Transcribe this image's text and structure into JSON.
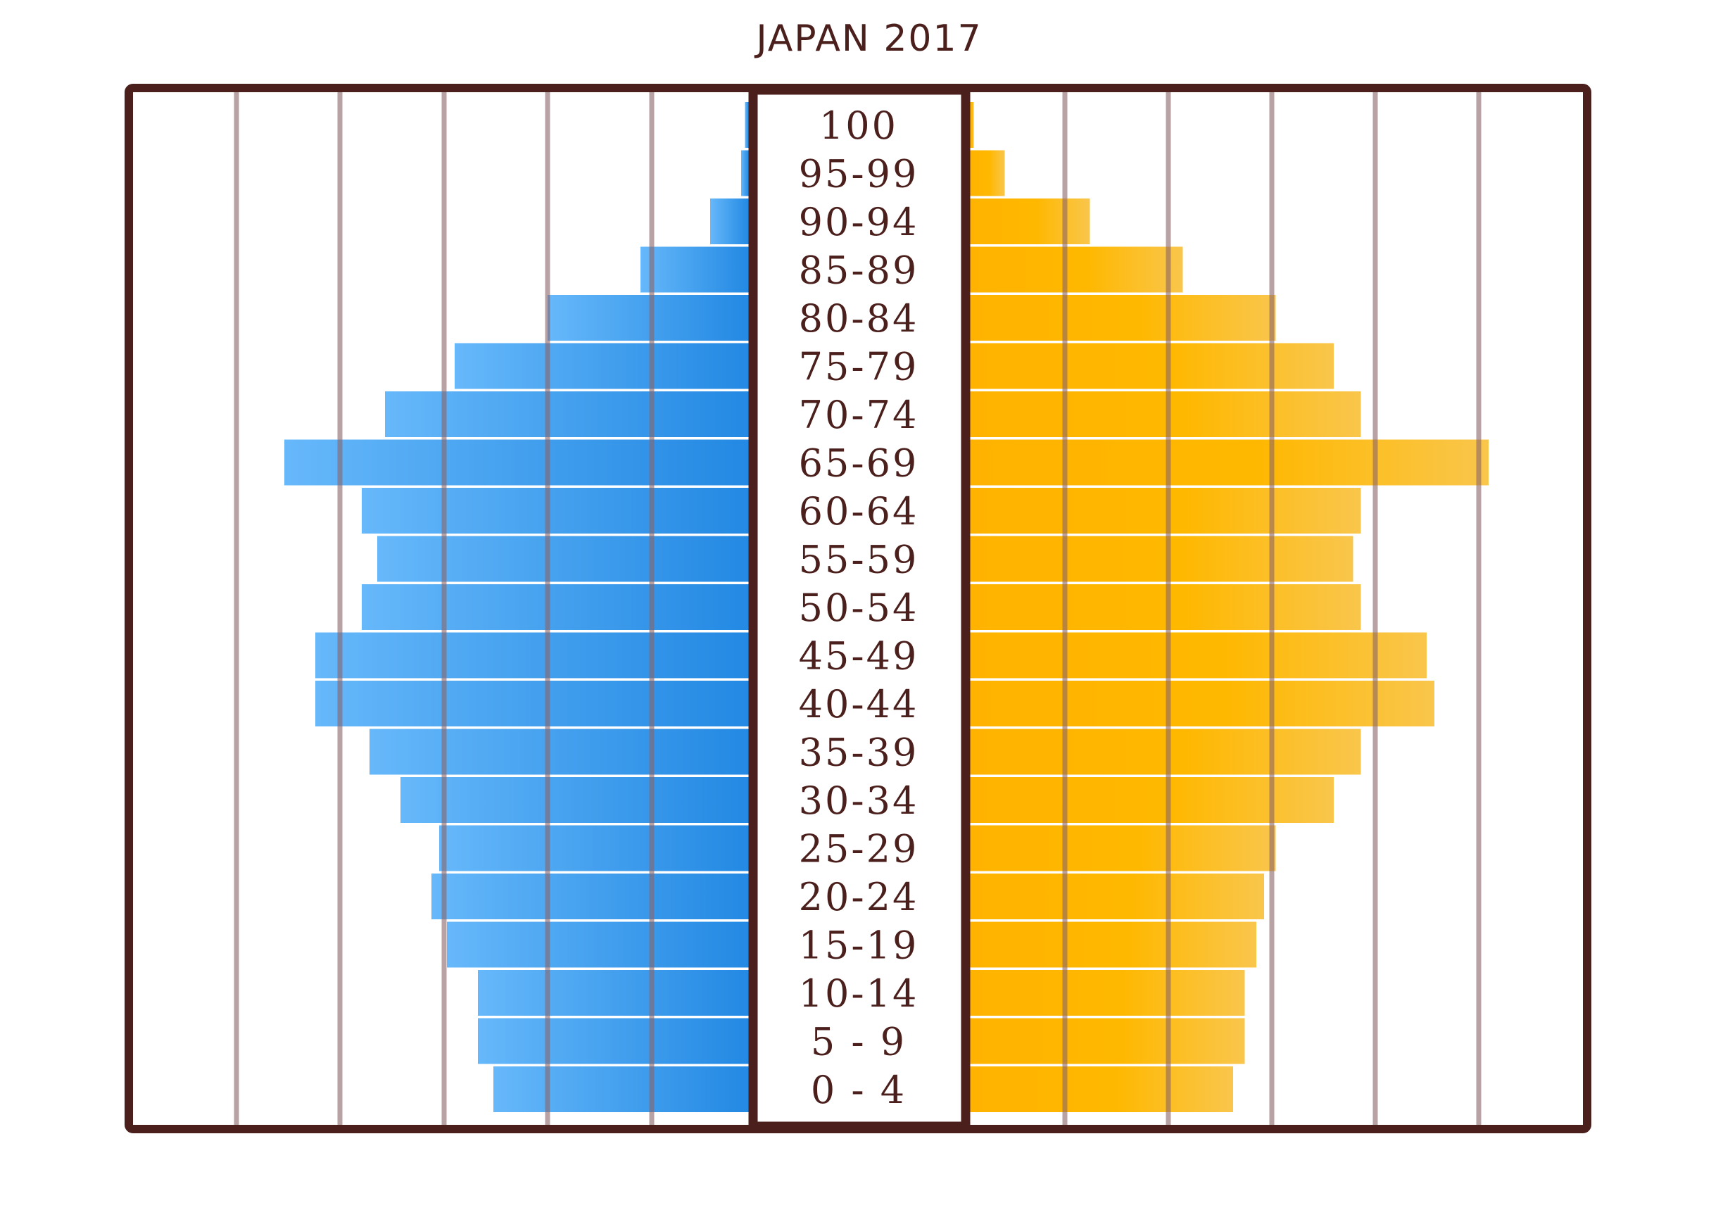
{
  "chart_data": {
    "type": "bar",
    "title": "JAPAN 2017",
    "categories": [
      "100",
      "95-99",
      "90-94",
      "85-89",
      "80-84",
      "75-79",
      "70-74",
      "65-69",
      "60-64",
      "55-59",
      "50-54",
      "45-49",
      "40-44",
      "35-39",
      "30-34",
      "25-29",
      "20-24",
      "15-19",
      "10-14",
      "5 - 9",
      "0 - 4"
    ],
    "series": [
      {
        "color": "#2b8fe6",
        "values": [
          0.05,
          0.1,
          0.5,
          1.4,
          2.6,
          3.8,
          4.7,
          6.0,
          5.0,
          4.8,
          5.0,
          5.6,
          5.6,
          4.9,
          4.5,
          4.0,
          4.1,
          3.9,
          3.5,
          3.5,
          3.3
        ]
      },
      {
        "color": "#ffb300",
        "values": [
          0.05,
          0.45,
          1.55,
          2.75,
          3.95,
          4.7,
          5.05,
          6.7,
          5.05,
          4.95,
          5.05,
          5.9,
          6.0,
          5.05,
          4.7,
          3.95,
          3.8,
          3.7,
          3.55,
          3.55,
          3.4
        ]
      }
    ],
    "xlim": [
      0,
      9
    ],
    "grid": true
  }
}
